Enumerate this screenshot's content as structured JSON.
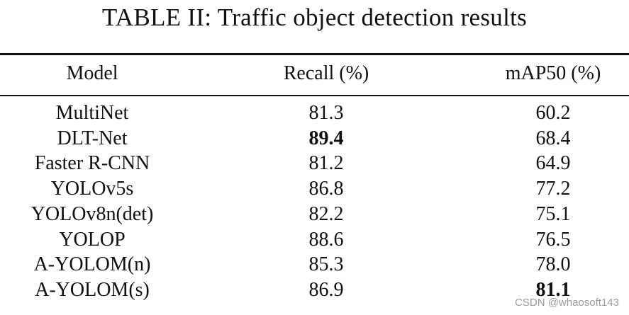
{
  "caption": "TABLE II: Traffic object detection results",
  "headers": [
    "Model",
    "Recall (%)",
    "mAP50 (%)"
  ],
  "rows": [
    {
      "model": "MultiNet",
      "recall": "81.3",
      "map50": "60.2"
    },
    {
      "model": "DLT-Net",
      "recall": "89.4",
      "map50": "68.4"
    },
    {
      "model": "Faster R-CNN",
      "recall": "81.2",
      "map50": "64.9"
    },
    {
      "model": "YOLOv5s",
      "recall": "86.8",
      "map50": "77.2"
    },
    {
      "model": "YOLOv8n(det)",
      "recall": "82.2",
      "map50": "75.1"
    },
    {
      "model": "YOLOP",
      "recall": "88.6",
      "map50": "76.5"
    },
    {
      "model": "A-YOLOM(n)",
      "recall": "85.3",
      "map50": "78.0"
    },
    {
      "model": "A-YOLOM(s)",
      "recall": "86.9",
      "map50": "81.1"
    }
  ],
  "bold_cells": {
    "recall": [
      1
    ],
    "map50": [
      7
    ]
  },
  "watermark": "CSDN @whaosoft143"
}
